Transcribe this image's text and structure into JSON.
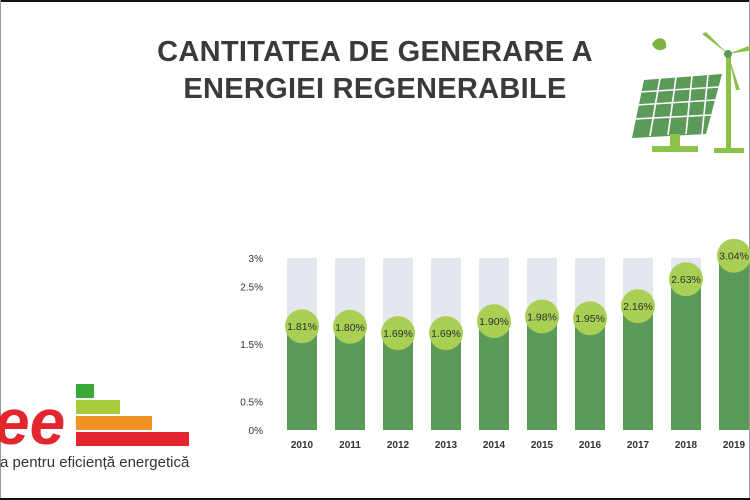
{
  "title_line1": "CANTITATEA DE GENERARE A",
  "title_line2": "ENERGIEI REGENERABILE",
  "logo_text": "ee",
  "tagline": "a pentru eficiență energetică",
  "colors": {
    "bar": "#5b9a58",
    "bar_background": "#e4e7ee",
    "bubble": "#a9cf55",
    "title": "#3a3a3a",
    "logo_green": "#36a936",
    "logo_light_green": "#a6cd39",
    "logo_orange": "#f39325",
    "logo_red": "#e3262e"
  },
  "chart_data": {
    "type": "bar",
    "categories": [
      "2010",
      "2011",
      "2012",
      "2013",
      "2014",
      "2015",
      "2016",
      "2017",
      "2018",
      "2019"
    ],
    "values": [
      1.81,
      1.8,
      1.69,
      1.69,
      1.9,
      1.98,
      1.95,
      2.16,
      2.63,
      3.04
    ],
    "data_labels": [
      "1.81%",
      "1.80%",
      "1.69%",
      "1.69%",
      "1.90%",
      "1.98%",
      "1.95%",
      "2.16%",
      "2.63%",
      "3.04%"
    ],
    "y_ticks": [
      0,
      0.5,
      1.5,
      2.5,
      3
    ],
    "y_tick_labels": [
      "0%",
      "0.5%",
      "1.5%",
      "2.5%",
      "3%"
    ],
    "ylim": [
      0,
      3
    ],
    "background_bars": true,
    "grid": false,
    "title": "",
    "xlabel": "",
    "ylabel": ""
  }
}
